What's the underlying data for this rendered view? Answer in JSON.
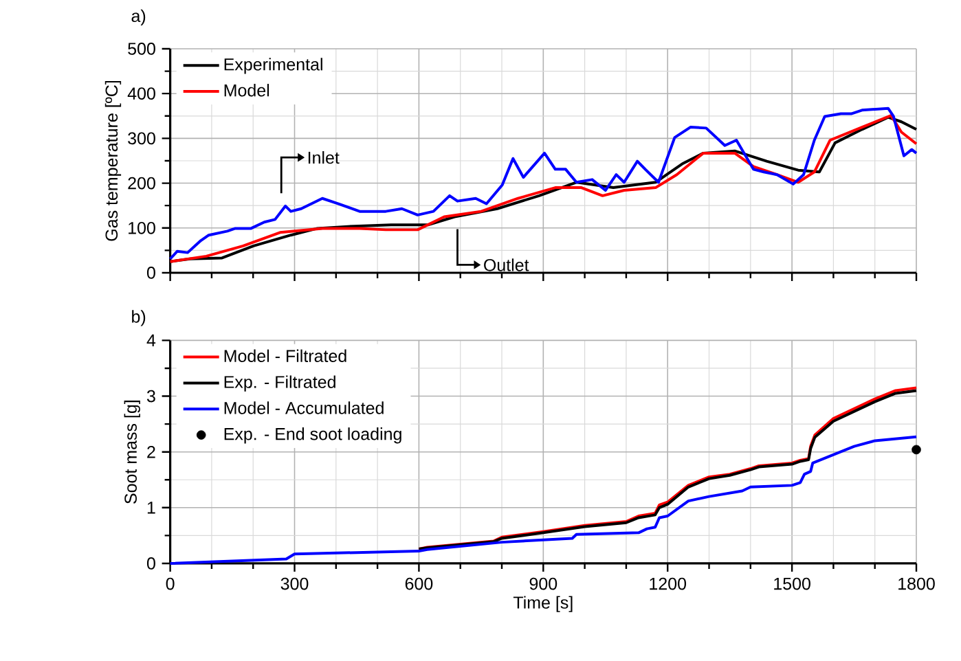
{
  "chart_data": [
    {
      "type": "line",
      "ylabel": "Gas temperature [ºC]",
      "xlim": [
        0,
        1800
      ],
      "ylim": [
        0,
        500
      ],
      "xticks": [
        0,
        300,
        600,
        900,
        1200,
        1500,
        1800
      ],
      "yticks": [
        0,
        100,
        200,
        300,
        400,
        500
      ],
      "tick_labels": "y",
      "grid": true,
      "legend": "top left",
      "annotations": [
        "a)",
        {
          "text": "Inlet",
          "x": 268,
          "y": 150
        },
        {
          "text": "Outlet",
          "x": 693,
          "y": 125
        }
      ],
      "series": [
        {
          "name": "Experimental",
          "color": "#000000",
          "x": [
            0,
            48,
            125,
            201,
            291,
            355,
            444,
            533,
            623,
            686,
            789,
            890,
            980,
            1069,
            1171,
            1235,
            1286,
            1362,
            1439,
            1515,
            1566,
            1604,
            1669,
            1732,
            1764,
            1800
          ],
          "values": [
            25,
            31,
            33,
            60,
            84,
            99,
            104,
            107,
            107,
            125,
            143,
            172,
            202,
            190,
            202,
            243,
            267,
            272,
            249,
            229,
            225,
            290,
            320,
            347,
            337,
            320
          ]
        },
        {
          "name": "Model",
          "color": "#ff0000",
          "x": [
            0,
            87,
            176,
            265,
            367,
            457,
            520,
            597,
            661,
            750,
            839,
            929,
            992,
            1043,
            1095,
            1171,
            1222,
            1286,
            1362,
            1407,
            1464,
            1515,
            1554,
            1592,
            1669,
            1739,
            1764,
            1800
          ],
          "values": [
            25,
            37,
            60,
            90,
            99,
            99,
            96,
            96,
            125,
            137,
            166,
            190,
            190,
            172,
            184,
            190,
            219,
            267,
            267,
            237,
            219,
            202,
            225,
            296,
            325,
            351,
            314,
            288
          ]
        },
        {
          "color": "#0000ff",
          "x": [
            0,
            17,
            42,
            74,
            93,
            138,
            157,
            195,
            227,
            253,
            278,
            291,
            316,
            367,
            406,
            457,
            520,
            559,
            597,
            635,
            674,
            693,
            737,
            763,
            801,
            827,
            852,
            903,
            929,
            954,
            980,
            1018,
            1050,
            1076,
            1095,
            1127,
            1146,
            1178,
            1217,
            1255,
            1293,
            1338,
            1366,
            1407,
            1432,
            1464,
            1503,
            1528,
            1554,
            1579,
            1618,
            1643,
            1669,
            1732,
            1745,
            1770,
            1789,
            1800
          ],
          "values": [
            31,
            48,
            45,
            72,
            84,
            93,
            99,
            99,
            113,
            119,
            149,
            137,
            143,
            166,
            154,
            137,
            137,
            143,
            129,
            137,
            172,
            160,
            166,
            154,
            196,
            255,
            213,
            267,
            231,
            231,
            202,
            208,
            184,
            219,
            202,
            249,
            231,
            202,
            302,
            325,
            323,
            284,
            296,
            231,
            225,
            219,
            198,
            219,
            296,
            349,
            355,
            355,
            363,
            367,
            349,
            261,
            275,
            267
          ]
        }
      ]
    },
    {
      "type": "line",
      "xlabel": "Time [s]",
      "ylabel": "Soot mass [g]",
      "xlim": [
        0,
        1800
      ],
      "ylim": [
        0,
        4
      ],
      "xticks": [
        0,
        300,
        600,
        900,
        1200,
        1500,
        1800
      ],
      "yticks": [
        0,
        1,
        2,
        3,
        4
      ],
      "grid": true,
      "legend": "top left",
      "annotations": [
        "b)"
      ],
      "series": [
        {
          "name": "Model - Filtrated",
          "color": "#ff0000",
          "x": [
            600,
            620,
            780,
            800,
            900,
            1000,
            1100,
            1130,
            1170,
            1180,
            1200,
            1250,
            1300,
            1350,
            1400,
            1420,
            1500,
            1520,
            1540,
            1545,
            1555,
            1600,
            1700,
            1750,
            1800
          ],
          "values": [
            0.26,
            0.29,
            0.4,
            0.47,
            0.57,
            0.68,
            0.75,
            0.85,
            0.9,
            1.05,
            1.1,
            1.4,
            1.55,
            1.6,
            1.7,
            1.75,
            1.8,
            1.85,
            1.88,
            2.1,
            2.3,
            2.6,
            2.95,
            3.1,
            3.15
          ]
        },
        {
          "name": "Exp. - Filtrated",
          "color": "#000000",
          "x": [
            600,
            620,
            780,
            800,
            900,
            1000,
            1100,
            1130,
            1170,
            1180,
            1200,
            1250,
            1300,
            1350,
            1400,
            1420,
            1500,
            1520,
            1540,
            1545,
            1555,
            1600,
            1700,
            1750,
            1800
          ],
          "values": [
            0.26,
            0.28,
            0.39,
            0.45,
            0.55,
            0.66,
            0.73,
            0.82,
            0.87,
            1.0,
            1.06,
            1.37,
            1.52,
            1.58,
            1.68,
            1.73,
            1.78,
            1.83,
            1.86,
            2.06,
            2.26,
            2.55,
            2.9,
            3.05,
            3.1
          ]
        },
        {
          "name": "Model - Accumulated",
          "color": "#0000ff",
          "x": [
            0,
            280,
            300,
            600,
            620,
            800,
            970,
            980,
            1130,
            1150,
            1170,
            1180,
            1200,
            1250,
            1300,
            1380,
            1400,
            1500,
            1520,
            1530,
            1545,
            1550,
            1600,
            1650,
            1700,
            1800
          ],
          "values": [
            0,
            0.08,
            0.17,
            0.22,
            0.25,
            0.38,
            0.45,
            0.52,
            0.55,
            0.62,
            0.65,
            0.82,
            0.85,
            1.12,
            1.2,
            1.3,
            1.37,
            1.4,
            1.45,
            1.6,
            1.65,
            1.8,
            1.95,
            2.1,
            2.2,
            2.27
          ]
        },
        {
          "name": "Exp. - End soot loading",
          "type": "scatter",
          "color": "#000000",
          "x": [
            1800
          ],
          "values": [
            2.04
          ]
        }
      ]
    }
  ]
}
